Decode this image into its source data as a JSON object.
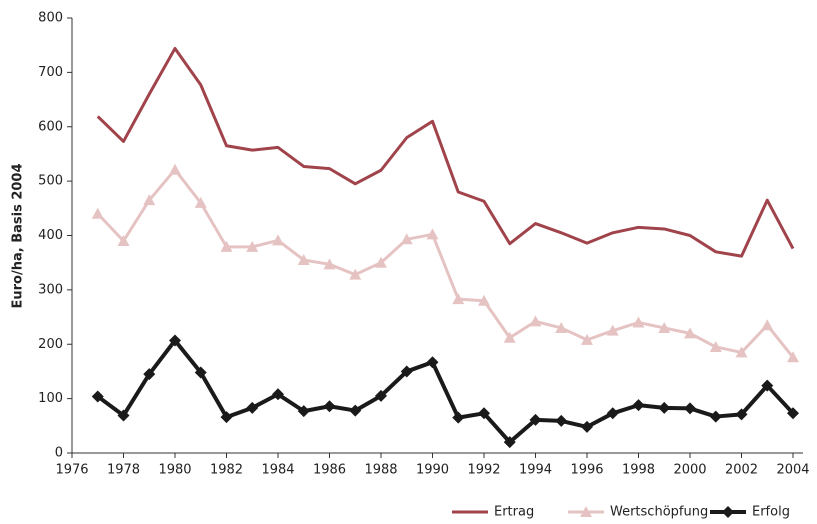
{
  "chart_data": {
    "type": "line",
    "y_label": "Euro/ha, Basis 2004",
    "x": [
      1977,
      1978,
      1979,
      1980,
      1981,
      1982,
      1983,
      1984,
      1985,
      1986,
      1987,
      1988,
      1989,
      1990,
      1991,
      1992,
      1993,
      1994,
      1995,
      1996,
      1997,
      1998,
      1999,
      2000,
      2001,
      2002,
      2003,
      2004
    ],
    "series": [
      {
        "name": "Ertrag",
        "color": "#a0434b",
        "marker": "none",
        "values": [
          619,
          573,
          660,
          744,
          677,
          565,
          557,
          562,
          527,
          523,
          495,
          520,
          580,
          610,
          480,
          463,
          385,
          422,
          405,
          386,
          405,
          415,
          412,
          400,
          370,
          362,
          465,
          376
        ]
      },
      {
        "name": "Wertschöpfung",
        "color": "#e6c3c3",
        "marker": "triangle",
        "values": [
          440,
          390,
          465,
          521,
          460,
          379,
          379,
          391,
          355,
          347,
          328,
          350,
          393,
          402,
          283,
          280,
          212,
          242,
          230,
          208,
          225,
          240,
          230,
          220,
          195,
          185,
          235,
          176
        ]
      },
      {
        "name": "Erfolg",
        "color": "#1a1a1a",
        "marker": "diamond",
        "values": [
          104,
          69,
          145,
          207,
          148,
          66,
          83,
          108,
          77,
          86,
          78,
          105,
          150,
          167,
          65,
          73,
          20,
          61,
          59,
          48,
          73,
          88,
          83,
          82,
          67,
          71,
          124,
          73
        ]
      }
    ],
    "xlim": [
      1976,
      2004
    ],
    "xticks": [
      1976,
      1978,
      1980,
      1982,
      1984,
      1986,
      1988,
      1990,
      1992,
      1994,
      1996,
      1998,
      2000,
      2002,
      2004
    ],
    "ylim": [
      0,
      800
    ],
    "yticks": [
      0,
      100,
      200,
      300,
      400,
      500,
      600,
      700,
      800
    ],
    "grid": false,
    "legend": "bottom-right"
  }
}
